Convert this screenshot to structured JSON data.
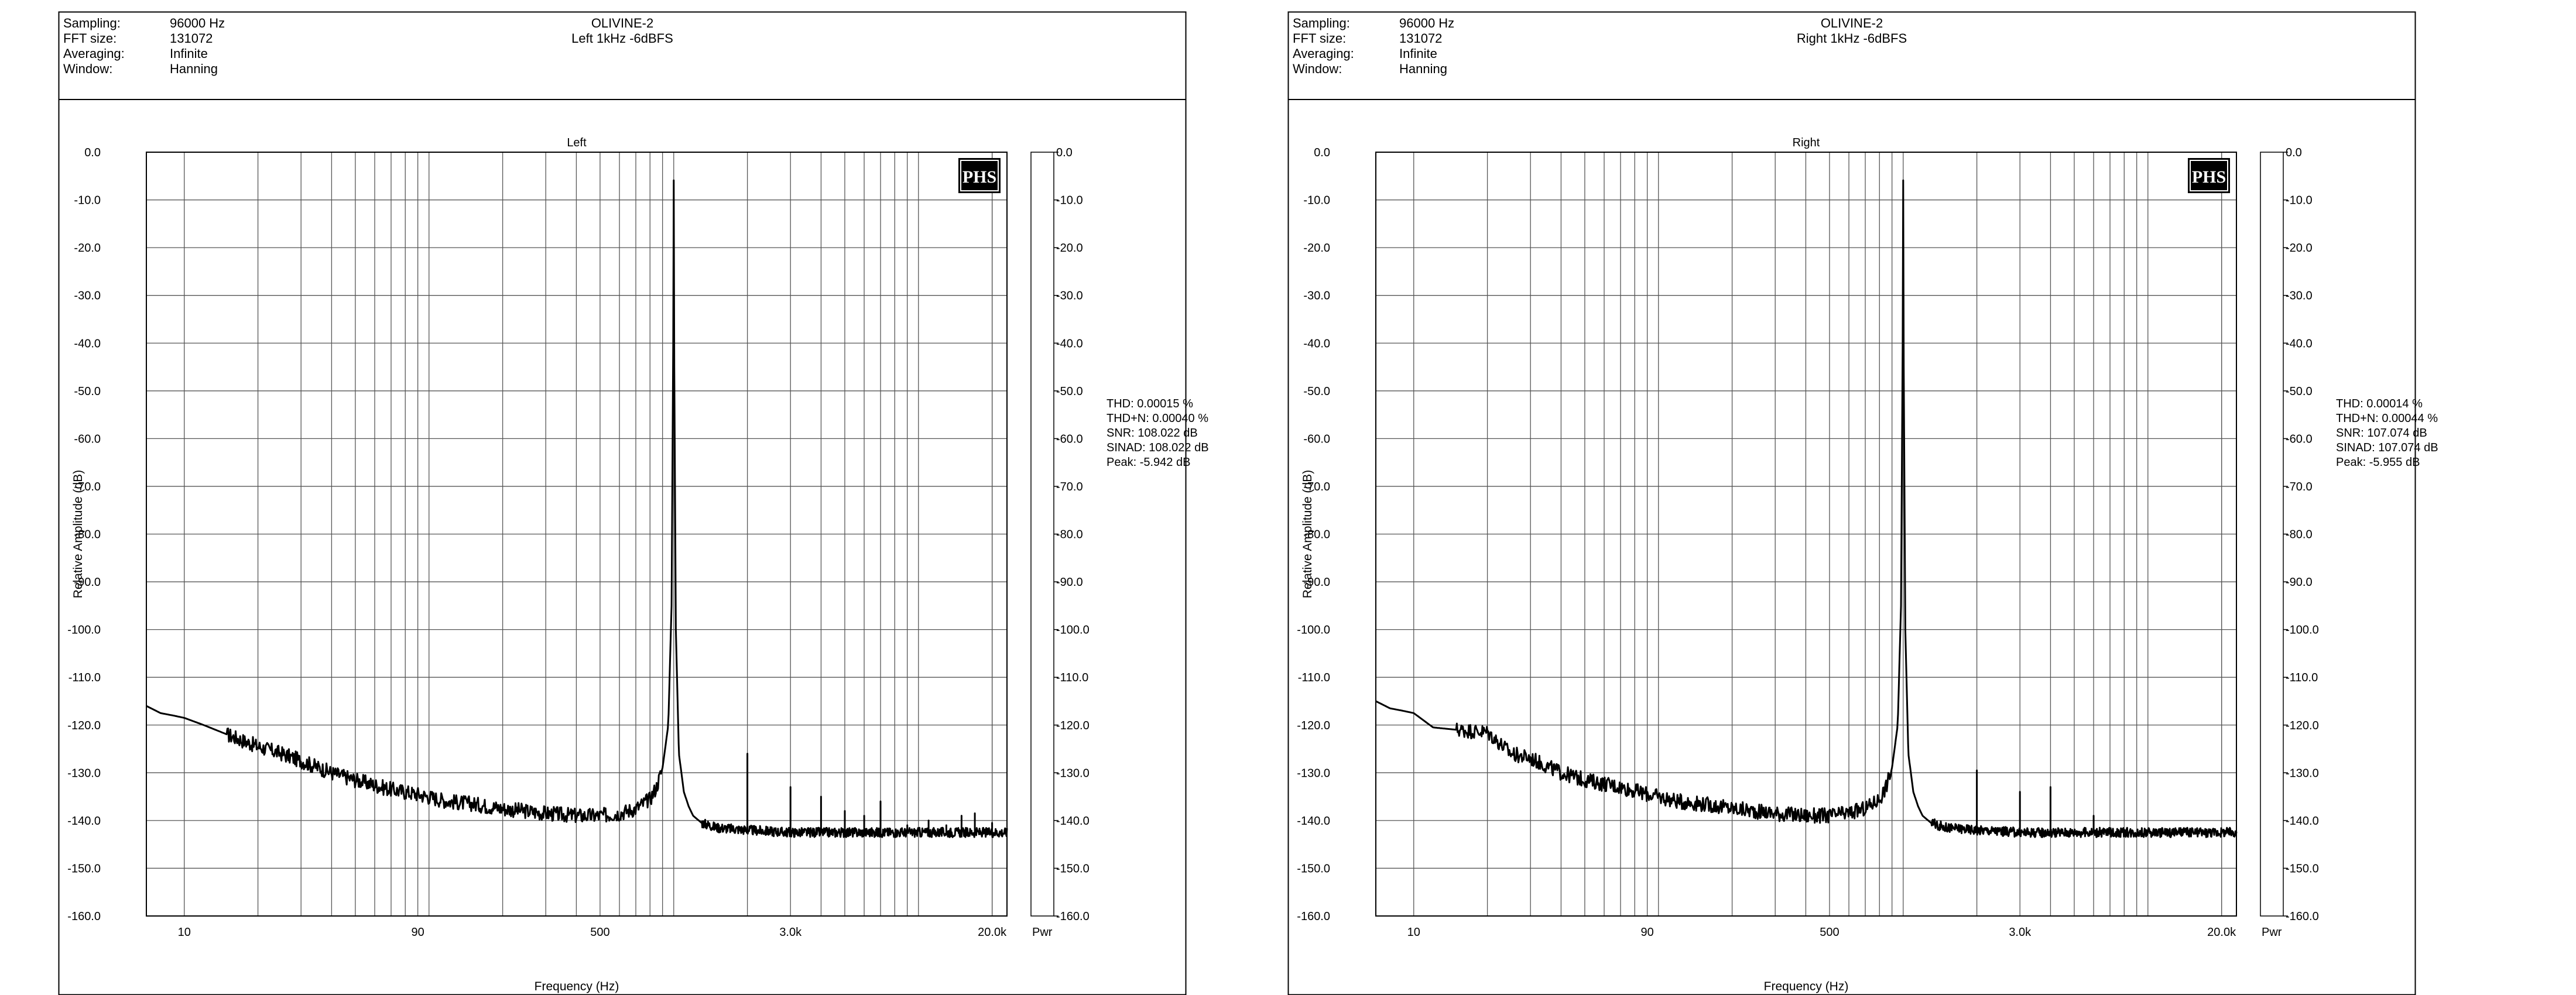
{
  "chart_data": [
    {
      "type": "line",
      "header": {
        "labels": [
          "Sampling:",
          "FFT size:",
          "Averaging:",
          "Window:"
        ],
        "values": [
          "96000 Hz",
          "131072",
          "Infinite",
          "Hanning"
        ]
      },
      "title": "OLIVINE-2",
      "subtitle": "Left 1kHz -6dBFS",
      "plot_title": "Left",
      "xlabel": "Frequency (Hz)",
      "ylabel": "Relative Amplitude (dB)",
      "x_scale": "log",
      "xlim": [
        7,
        23000
      ],
      "ylim": [
        -160,
        0
      ],
      "x_ticks": [
        10,
        90,
        500,
        3000,
        20000
      ],
      "x_tick_labels": [
        "10",
        "90",
        "500",
        "3.0k",
        "20.0k"
      ],
      "y_ticks": [
        0,
        -10,
        -20,
        -30,
        -40,
        -50,
        -60,
        -70,
        -80,
        -90,
        -100,
        -110,
        -120,
        -130,
        -140,
        -150,
        -160
      ],
      "y_tick_labels": [
        "0.0",
        "-10.0",
        "-20.0",
        "-30.0",
        "-40.0",
        "-50.0",
        "-60.0",
        "-70.0",
        "-80.0",
        "-90.0",
        "-100.0",
        "-110.0",
        "-120.0",
        "-130.0",
        "-140.0",
        "-150.0",
        "-160.0"
      ],
      "grid": true,
      "logo": "PHS",
      "pwr_label": "Pwr",
      "stats": [
        "THD: 0.00015 %",
        "THD+N: 0.00040 %",
        "SNR: 108.022 dB",
        "SINAD: 108.022 dB",
        "Peak: -5.942 dB"
      ],
      "series": [
        {
          "noise_floor": {
            "x": [
              7,
              8,
              9,
              10,
              12,
              15,
              20,
              25,
              30,
              40,
              50,
              70,
              90,
              120,
              150,
              200,
              300,
              400,
              500,
              600,
              700,
              800,
              850,
              900,
              950,
              980,
              1000
            ],
            "y": [
              -116,
              -117.5,
              -118,
              -118.5,
              -120,
              -122,
              -124.5,
              -126,
              -127.5,
              -130,
              -131.5,
              -133.5,
              -134.5,
              -136,
              -136.5,
              -137.5,
              -138.5,
              -139,
              -139,
              -138.5,
              -137.5,
              -135.5,
              -133,
              -129,
              -120,
              -95,
              -5.9
            ]
          },
          "noise_floor_high": {
            "x": [
              1000,
              1020,
              1050,
              1100,
              1150,
              1200,
              1300,
              1500,
              2000,
              3000,
              5000,
              10000,
              15000,
              20000,
              23000
            ],
            "y": [
              -5.9,
              -100,
              -126,
              -134,
              -137,
              -139,
              -140.5,
              -141.5,
              -142,
              -142.5,
              -142.5,
              -142.5,
              -142.5,
              -142.5,
              -142.5
            ]
          },
          "harmonics": {
            "x": [
              2000,
              3000,
              4000,
              5000,
              6000,
              7000,
              9000,
              11000,
              13000,
              15000,
              17000,
              20000
            ],
            "y": [
              -126,
              -133,
              -135,
              -138,
              -139,
              -136,
              -141,
              -140,
              -141,
              -139,
              -138.5,
              -140.5
            ]
          }
        }
      ]
    },
    {
      "type": "line",
      "header": {
        "labels": [
          "Sampling:",
          "FFT size:",
          "Averaging:",
          "Window:"
        ],
        "values": [
          "96000 Hz",
          "131072",
          "Infinite",
          "Hanning"
        ]
      },
      "title": "OLIVINE-2",
      "subtitle": "Right 1kHz -6dBFS",
      "plot_title": "Right",
      "xlabel": "Frequency (Hz)",
      "ylabel": "Relative Amplitude (dB)",
      "x_scale": "log",
      "xlim": [
        7,
        23000
      ],
      "ylim": [
        -160,
        0
      ],
      "x_ticks": [
        10,
        90,
        500,
        3000,
        20000
      ],
      "x_tick_labels": [
        "10",
        "90",
        "500",
        "3.0k",
        "20.0k"
      ],
      "y_ticks": [
        0,
        -10,
        -20,
        -30,
        -40,
        -50,
        -60,
        -70,
        -80,
        -90,
        -100,
        -110,
        -120,
        -130,
        -140,
        -150,
        -160
      ],
      "y_tick_labels": [
        "0.0",
        "-10.0",
        "-20.0",
        "-30.0",
        "-40.0",
        "-50.0",
        "-60.0",
        "-70.0",
        "-80.0",
        "-90.0",
        "-100.0",
        "-110.0",
        "-120.0",
        "-130.0",
        "-140.0",
        "-150.0",
        "-160.0"
      ],
      "grid": true,
      "logo": "PHS",
      "pwr_label": "Pwr",
      "stats": [
        "THD: 0.00014 %",
        "THD+N: 0.00044 %",
        "SNR: 107.074 dB",
        "SINAD: 107.074 dB",
        "Peak: -5.955 dB"
      ],
      "series": [
        {
          "noise_floor": {
            "x": [
              7,
              8,
              9,
              10,
              12,
              15,
              20,
              25,
              30,
              40,
              50,
              70,
              90,
              120,
              150,
              200,
              300,
              400,
              500,
              600,
              700,
              800,
              850,
              900,
              950,
              980,
              1000
            ],
            "y": [
              -115,
              -116.5,
              -117,
              -117.5,
              -120.5,
              -121,
              -121.5,
              -126,
              -127,
              -130,
              -131.5,
              -133,
              -134.5,
              -136,
              -136.5,
              -137.5,
              -138.5,
              -139,
              -139,
              -138.5,
              -137.5,
              -135.5,
              -133,
              -129,
              -120,
              -95,
              -5.9
            ]
          },
          "noise_floor_high": {
            "x": [
              1000,
              1020,
              1050,
              1100,
              1150,
              1200,
              1300,
              1500,
              2000,
              3000,
              5000,
              10000,
              15000,
              20000,
              23000
            ],
            "y": [
              -5.9,
              -100,
              -126,
              -134,
              -137,
              -139,
              -140.5,
              -141.5,
              -142,
              -142.5,
              -142.5,
              -142.5,
              -142.5,
              -142.5,
              -142.5
            ]
          },
          "harmonics": {
            "x": [
              2000,
              3000,
              4000,
              6000
            ],
            "y": [
              -129.5,
              -134,
              -133,
              -139
            ]
          }
        }
      ]
    }
  ]
}
